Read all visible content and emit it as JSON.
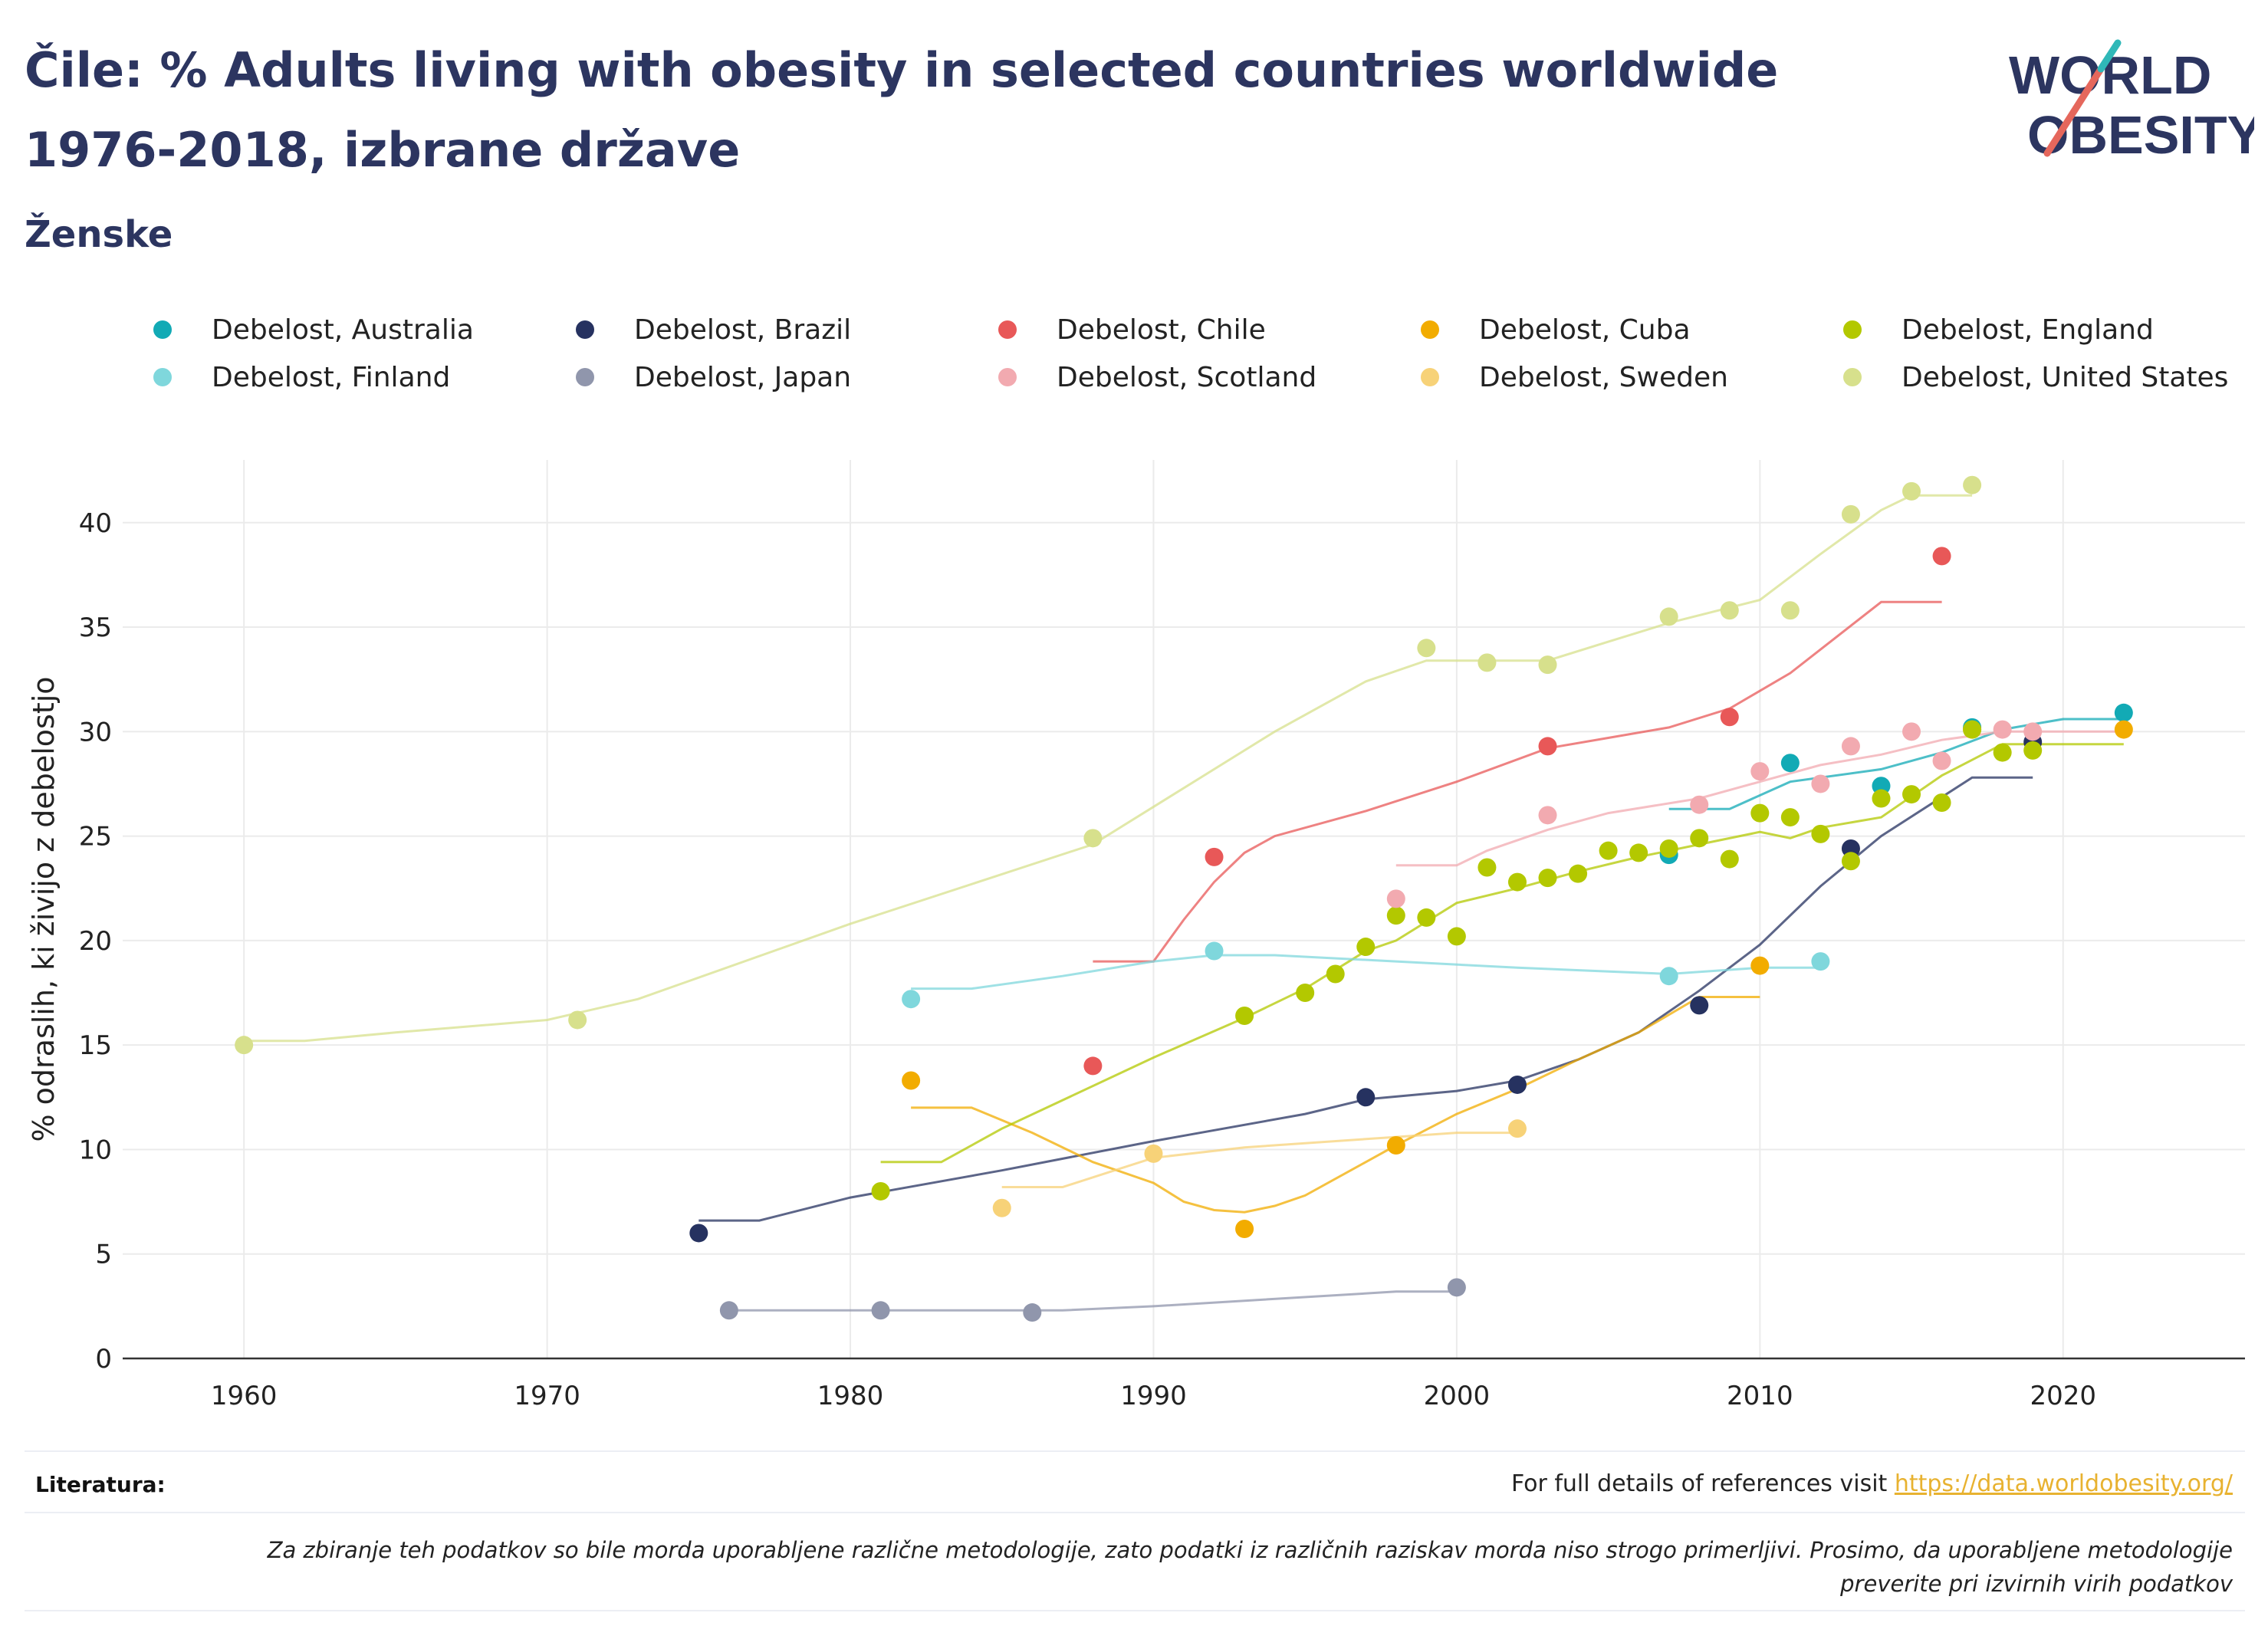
{
  "title": "Čile: % Adults living with obesity in selected countries worldwide 1976-2018, izbrane države",
  "subtitle": "Ženske",
  "logo": {
    "line1": "WORLD",
    "line2": "OBESITY",
    "accent": "#e5675c",
    "accent2": "#2fb8b8"
  },
  "footer": {
    "label": "Literatura:",
    "ref_text": "For full details of references visit ",
    "ref_link": "https://data.worldobesity.org/",
    "note": "Za zbiranje teh podatkov so bile morda uporabljene različne metodologije, zato podatki iz različnih raziskav morda niso strogo primerljivi. Prosimo, da uporabljene metodologije preverite pri izvirnih virih podatkov"
  },
  "chart_data": {
    "type": "scatter",
    "ylabel": "% odraslih, ki živijo z debelostjo",
    "xlim": [
      1956,
      2026
    ],
    "ylim": [
      0,
      43
    ],
    "xticks": [
      1960,
      1970,
      1980,
      1990,
      2000,
      2010,
      2020
    ],
    "yticks": [
      0,
      5,
      10,
      15,
      20,
      25,
      30,
      35,
      40
    ],
    "grid": true,
    "legend_position": "top",
    "series": [
      {
        "name": "Debelost, Australia",
        "color": "#12aab5",
        "points": [
          [
            2007,
            24.1
          ],
          [
            2011,
            28.5
          ],
          [
            2014,
            27.4
          ],
          [
            2017,
            30.2
          ],
          [
            2022,
            30.9
          ]
        ],
        "trend": [
          [
            2007,
            26.3
          ],
          [
            2009,
            26.3
          ],
          [
            2011,
            27.6
          ],
          [
            2014,
            28.2
          ],
          [
            2016,
            29.0
          ],
          [
            2018,
            30.1
          ],
          [
            2020,
            30.6
          ],
          [
            2022,
            30.6
          ]
        ]
      },
      {
        "name": "Debelost, Brazil",
        "color": "#263260",
        "points": [
          [
            1975,
            6.0
          ],
          [
            1997,
            12.5
          ],
          [
            2002,
            13.1
          ],
          [
            2008,
            16.9
          ],
          [
            2013,
            24.4
          ],
          [
            2019,
            29.5
          ]
        ],
        "trend": [
          [
            1975,
            6.6
          ],
          [
            1977,
            6.6
          ],
          [
            1980,
            7.7
          ],
          [
            1985,
            9.0
          ],
          [
            1990,
            10.4
          ],
          [
            1995,
            11.7
          ],
          [
            1997,
            12.4
          ],
          [
            2000,
            12.8
          ],
          [
            2002,
            13.3
          ],
          [
            2004,
            14.3
          ],
          [
            2006,
            15.6
          ],
          [
            2008,
            17.6
          ],
          [
            2010,
            19.8
          ],
          [
            2012,
            22.6
          ],
          [
            2014,
            25.0
          ],
          [
            2017,
            27.8
          ],
          [
            2019,
            27.8
          ]
        ]
      },
      {
        "name": "Debelost, Chile",
        "color": "#e85858",
        "points": [
          [
            1988,
            14.0
          ],
          [
            1992,
            24.0
          ],
          [
            2003,
            29.3
          ],
          [
            2009,
            30.7
          ],
          [
            2016,
            38.4
          ]
        ],
        "trend": [
          [
            1988,
            19.0
          ],
          [
            1990,
            19.0
          ],
          [
            1991,
            21.0
          ],
          [
            1992,
            22.8
          ],
          [
            1993,
            24.2
          ],
          [
            1994,
            25.0
          ],
          [
            1997,
            26.2
          ],
          [
            2000,
            27.6
          ],
          [
            2003,
            29.2
          ],
          [
            2005,
            29.7
          ],
          [
            2007,
            30.2
          ],
          [
            2009,
            31.1
          ],
          [
            2011,
            32.8
          ],
          [
            2014,
            36.2
          ],
          [
            2016,
            36.2
          ]
        ]
      },
      {
        "name": "Debelost, Cuba",
        "color": "#f2ac00",
        "points": [
          [
            1982,
            13.3
          ],
          [
            1993,
            6.2
          ],
          [
            1998,
            10.2
          ],
          [
            2010,
            18.8
          ],
          [
            2017,
            30.1
          ],
          [
            2022,
            30.1
          ]
        ],
        "trend": [
          [
            1982,
            12.0
          ],
          [
            1984,
            12.0
          ],
          [
            1986,
            10.8
          ],
          [
            1988,
            9.4
          ],
          [
            1990,
            8.4
          ],
          [
            1991,
            7.5
          ],
          [
            1992,
            7.1
          ],
          [
            1993,
            7.0
          ],
          [
            1994,
            7.3
          ],
          [
            1995,
            7.8
          ],
          [
            1997,
            9.4
          ],
          [
            1998,
            10.2
          ],
          [
            2000,
            11.7
          ],
          [
            2002,
            12.9
          ],
          [
            2004,
            14.3
          ],
          [
            2006,
            15.6
          ],
          [
            2008,
            17.3
          ],
          [
            2010,
            17.3
          ]
        ]
      },
      {
        "name": "Debelost, England",
        "color": "#b3c800",
        "points": [
          [
            1981,
            8.0
          ],
          [
            1993,
            16.4
          ],
          [
            1995,
            17.5
          ],
          [
            1996,
            18.4
          ],
          [
            1997,
            19.7
          ],
          [
            1998,
            21.2
          ],
          [
            1999,
            21.1
          ],
          [
            2000,
            20.2
          ],
          [
            2001,
            23.5
          ],
          [
            2002,
            22.8
          ],
          [
            2003,
            23.0
          ],
          [
            2004,
            23.2
          ],
          [
            2005,
            24.3
          ],
          [
            2006,
            24.2
          ],
          [
            2007,
            24.4
          ],
          [
            2008,
            24.9
          ],
          [
            2009,
            23.9
          ],
          [
            2010,
            26.1
          ],
          [
            2011,
            25.9
          ],
          [
            2012,
            25.1
          ],
          [
            2013,
            23.8
          ],
          [
            2014,
            26.8
          ],
          [
            2015,
            27.0
          ],
          [
            2016,
            26.6
          ],
          [
            2017,
            30.1
          ],
          [
            2018,
            29.0
          ],
          [
            2019,
            29.1
          ]
        ],
        "trend": [
          [
            1981,
            9.4
          ],
          [
            1983,
            9.4
          ],
          [
            1985,
            11.0
          ],
          [
            1990,
            14.4
          ],
          [
            1993,
            16.3
          ],
          [
            1995,
            17.7
          ],
          [
            1997,
            19.5
          ],
          [
            1998,
            20.0
          ],
          [
            1999,
            20.9
          ],
          [
            2000,
            21.8
          ],
          [
            2002,
            22.5
          ],
          [
            2004,
            23.3
          ],
          [
            2006,
            24.0
          ],
          [
            2008,
            24.6
          ],
          [
            2010,
            25.2
          ],
          [
            2011,
            24.9
          ],
          [
            2012,
            25.4
          ],
          [
            2014,
            25.9
          ],
          [
            2016,
            27.9
          ],
          [
            2018,
            29.4
          ],
          [
            2020,
            29.4
          ],
          [
            2022,
            29.4
          ]
        ]
      },
      {
        "name": "Debelost, Finland",
        "color": "#7fd7dc",
        "points": [
          [
            1982,
            17.2
          ],
          [
            1992,
            19.5
          ],
          [
            2007,
            18.3
          ],
          [
            2012,
            19.0
          ]
        ],
        "trend": [
          [
            1982,
            17.7
          ],
          [
            1984,
            17.7
          ],
          [
            1987,
            18.3
          ],
          [
            1990,
            19.0
          ],
          [
            1992,
            19.3
          ],
          [
            1994,
            19.3
          ],
          [
            1998,
            19.0
          ],
          [
            2002,
            18.7
          ],
          [
            2007,
            18.4
          ],
          [
            2010,
            18.7
          ],
          [
            2012,
            18.7
          ]
        ]
      },
      {
        "name": "Debelost, Japan",
        "color": "#9096ac",
        "points": [
          [
            1976,
            2.3
          ],
          [
            1981,
            2.3
          ],
          [
            1986,
            2.2
          ],
          [
            2000,
            3.4
          ]
        ],
        "trend": [
          [
            1976,
            2.3
          ],
          [
            1987,
            2.3
          ],
          [
            1990,
            2.5
          ],
          [
            1998,
            3.2
          ],
          [
            2000,
            3.2
          ]
        ]
      },
      {
        "name": "Debelost, Scotland",
        "color": "#f2aab0",
        "points": [
          [
            1998,
            22.0
          ],
          [
            2003,
            26.0
          ],
          [
            2008,
            26.5
          ],
          [
            2010,
            28.1
          ],
          [
            2012,
            27.5
          ],
          [
            2013,
            29.3
          ],
          [
            2015,
            30.0
          ],
          [
            2016,
            28.6
          ],
          [
            2018,
            30.1
          ],
          [
            2019,
            30.0
          ]
        ],
        "trend": [
          [
            1998,
            23.6
          ],
          [
            2000,
            23.6
          ],
          [
            2001,
            24.3
          ],
          [
            2003,
            25.3
          ],
          [
            2005,
            26.1
          ],
          [
            2008,
            26.8
          ],
          [
            2010,
            27.6
          ],
          [
            2012,
            28.4
          ],
          [
            2014,
            28.9
          ],
          [
            2016,
            29.6
          ],
          [
            2018,
            30.0
          ],
          [
            2022,
            30.0
          ]
        ]
      },
      {
        "name": "Debelost, Sweden",
        "color": "#f7d278",
        "points": [
          [
            1985,
            7.2
          ],
          [
            1990,
            9.8
          ],
          [
            2002,
            11.0
          ]
        ],
        "trend": [
          [
            1985,
            8.2
          ],
          [
            1987,
            8.2
          ],
          [
            1990,
            9.6
          ],
          [
            1993,
            10.1
          ],
          [
            1998,
            10.6
          ],
          [
            2000,
            10.8
          ],
          [
            2002,
            10.8
          ]
        ]
      },
      {
        "name": "Debelost, United States",
        "color": "#d7e08c",
        "points": [
          [
            1960,
            15.0
          ],
          [
            1971,
            16.2
          ],
          [
            1988,
            24.9
          ],
          [
            1999,
            34.0
          ],
          [
            2001,
            33.3
          ],
          [
            2003,
            33.2
          ],
          [
            2007,
            35.5
          ],
          [
            2009,
            35.8
          ],
          [
            2011,
            35.8
          ],
          [
            2013,
            40.4
          ],
          [
            2015,
            41.5
          ],
          [
            2017,
            41.8
          ]
        ],
        "trend": [
          [
            1960,
            15.2
          ],
          [
            1962,
            15.2
          ],
          [
            1965,
            15.6
          ],
          [
            1970,
            16.2
          ],
          [
            1973,
            17.2
          ],
          [
            1980,
            20.8
          ],
          [
            1988,
            24.6
          ],
          [
            1994,
            30.0
          ],
          [
            1997,
            32.4
          ],
          [
            1999,
            33.4
          ],
          [
            2001,
            33.4
          ],
          [
            2003,
            33.4
          ],
          [
            2005,
            34.3
          ],
          [
            2007,
            35.2
          ],
          [
            2010,
            36.3
          ],
          [
            2012,
            38.5
          ],
          [
            2014,
            40.6
          ],
          [
            2015,
            41.3
          ],
          [
            2017,
            41.3
          ]
        ]
      }
    ]
  }
}
